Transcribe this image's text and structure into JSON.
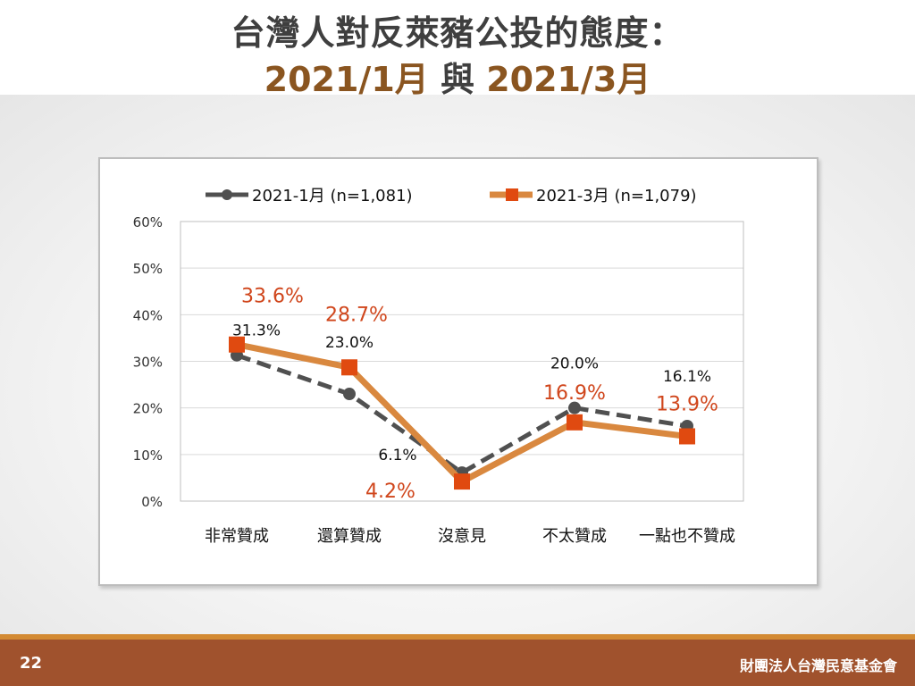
{
  "slide": {
    "title_line1": "台灣人對反萊豬公投的態度：",
    "title_part1": "2021/1月",
    "title_mid": " 與 ",
    "title_part2": "2021/3月",
    "page_number": "22",
    "organization": "財團法人台灣民意基金會"
  },
  "colors": {
    "series_jan": "#505050",
    "series_mar": "#d9883f",
    "marker_mar": "#e04a10",
    "label_mar": "#d0461c",
    "grid": "#d9d9d9",
    "footer": "#a0522d",
    "footer_stripe": "#d38a33"
  },
  "chart_data": {
    "type": "line",
    "categories": [
      "非常贊成",
      "還算贊成",
      "沒意見",
      "不太贊成",
      "一點也不贊成"
    ],
    "series": [
      {
        "name": "2021-1月 (n=1,081)",
        "values": [
          31.3,
          23.0,
          6.1,
          20.0,
          16.1
        ],
        "labels": [
          "31.3%",
          "23.0%",
          "6.1%",
          "20.0%",
          "16.1%"
        ],
        "style": "dashed",
        "color": "#505050"
      },
      {
        "name": "2021-3月 (n=1,079)",
        "values": [
          33.6,
          28.7,
          4.2,
          16.9,
          13.9
        ],
        "labels": [
          "33.6%",
          "28.7%",
          "4.2%",
          "16.9%",
          "13.9%"
        ],
        "style": "solid",
        "color": "#d9883f"
      }
    ],
    "y_ticks": [
      "0%",
      "10%",
      "20%",
      "30%",
      "40%",
      "50%",
      "60%"
    ],
    "ylim": [
      0,
      60
    ],
    "grid": true,
    "legend_position": "top"
  }
}
